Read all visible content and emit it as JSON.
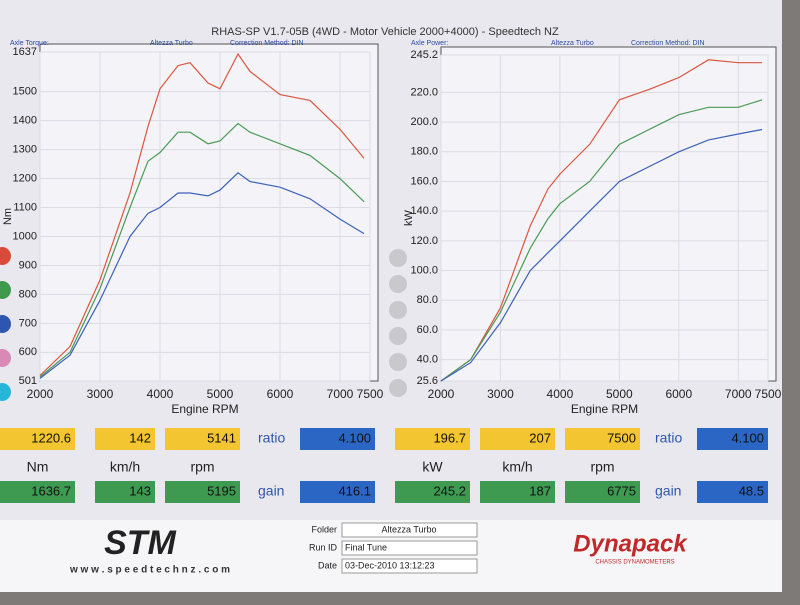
{
  "header": {
    "title": "RHAS-SP V1.7-05B  (4WD - Motor Vehicle 2000+4000) - Speedtech NZ"
  },
  "chart_data": [
    {
      "type": "line",
      "captions": [
        "Axle Torque:",
        "Altezza Turbo",
        "Correction Method: DIN"
      ],
      "y_label": "Nm",
      "x_label": "Engine RPM",
      "x": [
        2000,
        2500,
        3000,
        3500,
        3800,
        4000,
        4300,
        4500,
        4800,
        5000,
        5300,
        5500,
        6000,
        6500,
        7000,
        7400
      ],
      "series": [
        {
          "color": "#d9573f",
          "values": [
            520,
            620,
            850,
            1150,
            1380,
            1510,
            1590,
            1600,
            1530,
            1510,
            1630,
            1570,
            1490,
            1470,
            1370,
            1270
          ]
        },
        {
          "color": "#4a9a55",
          "values": [
            515,
            600,
            820,
            1100,
            1260,
            1290,
            1360,
            1360,
            1320,
            1330,
            1390,
            1360,
            1320,
            1280,
            1200,
            1120
          ]
        },
        {
          "color": "#3b62b8",
          "values": [
            510,
            590,
            780,
            1000,
            1080,
            1100,
            1150,
            1150,
            1140,
            1160,
            1220,
            1190,
            1170,
            1130,
            1060,
            1010
          ]
        }
      ],
      "xlim": [
        2000,
        7500
      ],
      "xticks": [
        2000,
        3000,
        4000,
        5000,
        6000,
        7000,
        7500
      ],
      "ylim": [
        501,
        1637
      ],
      "yticks": [
        501,
        600,
        700,
        800,
        900,
        1000,
        1100,
        1200,
        1300,
        1400,
        1500,
        1637
      ],
      "grid": true
    },
    {
      "type": "line",
      "captions": [
        "Axle Power:",
        "Altezza Turbo",
        "Correction Method: DIN"
      ],
      "y_label": "kW",
      "x_label": "Engine RPM",
      "x": [
        2000,
        2500,
        3000,
        3500,
        3800,
        4000,
        4500,
        5000,
        5500,
        6000,
        6500,
        7000,
        7400
      ],
      "series": [
        {
          "color": "#d9573f",
          "values": [
            25.6,
            40,
            75,
            130,
            155,
            165,
            185,
            215,
            222,
            230,
            242,
            240,
            240
          ]
        },
        {
          "color": "#4a9a55",
          "values": [
            25.6,
            40,
            72,
            115,
            135,
            145,
            160,
            185,
            195,
            205,
            210,
            210,
            215
          ]
        },
        {
          "color": "#3b62b8",
          "values": [
            25.6,
            38,
            65,
            100,
            112,
            120,
            140,
            160,
            170,
            180,
            188,
            192,
            195
          ]
        }
      ],
      "xlim": [
        2000,
        7500
      ],
      "xticks": [
        2000,
        3000,
        4000,
        5000,
        6000,
        7000,
        7500
      ],
      "ylim": [
        25.6,
        245.2
      ],
      "yticks": [
        25.6,
        {
          "value": 40,
          "label": "40.0"
        },
        {
          "value": 60,
          "label": "60.0"
        },
        {
          "value": 80,
          "label": "80.0"
        },
        {
          "value": 100,
          "label": "100.0"
        },
        {
          "value": 120,
          "label": "120.0"
        },
        {
          "value": 140,
          "label": "140.0"
        },
        {
          "value": 160,
          "label": "160.0"
        },
        {
          "value": 180,
          "label": "180.0"
        },
        {
          "value": 200,
          "label": "200.0"
        },
        {
          "value": 220,
          "label": "220.0"
        },
        245.2
      ],
      "grid": true
    }
  ],
  "readouts": [
    {
      "row1": [
        "1220.6",
        "142",
        "5141"
      ],
      "ratio_label": "ratio",
      "ratio": "4.100",
      "units": [
        "Nm",
        "km/h",
        "rpm"
      ],
      "row2": [
        "1636.7",
        "143",
        "5195"
      ],
      "gain_label": "gain",
      "gain": "416.1"
    },
    {
      "row1": [
        "196.7",
        "207",
        "7500"
      ],
      "ratio_label": "ratio",
      "ratio": "4.100",
      "units": [
        "kW",
        "km/h",
        "rpm"
      ],
      "row2": [
        "245.2",
        "187",
        "6775"
      ],
      "gain_label": "gain",
      "gain": "48.5"
    }
  ],
  "footer": {
    "logo": "STM",
    "website": "w w w . s p e e d t e c h n z . c o m",
    "folder_label": "Folder",
    "folder": "Altezza Turbo",
    "run_label": "Run ID",
    "run": "Final Tune",
    "date_label": "Date",
    "date": "03-Dec-2010   13:12:23",
    "brand": "Dynapack",
    "brand_sub": "CHASSIS DYNAMOMETERS"
  }
}
